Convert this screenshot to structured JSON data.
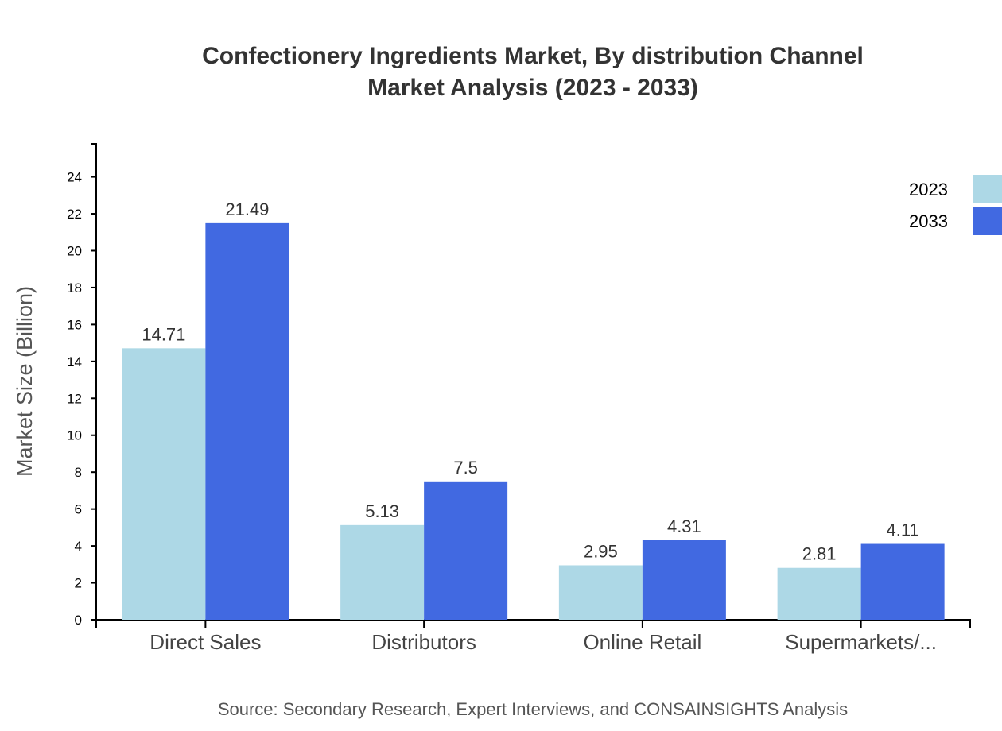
{
  "chart_data": {
    "type": "bar",
    "title": "Confectionery Ingredients Market, By distribution Channel",
    "subtitle": "Market Analysis (2023 - 2033)",
    "xlabel": "",
    "ylabel": "Market Size (Billion)",
    "categories": [
      "Direct Sales",
      "Distributors",
      "Online Retail",
      "Supermarkets/..."
    ],
    "series": [
      {
        "name": "2023",
        "color": "#add8e6",
        "values": [
          14.71,
          5.13,
          2.95,
          2.81
        ]
      },
      {
        "name": "2033",
        "color": "#4169e1",
        "values": [
          21.49,
          7.5,
          4.31,
          4.11
        ]
      }
    ],
    "ylim": [
      0,
      25.79
    ],
    "yticks": [
      0,
      2,
      4,
      6,
      8,
      10,
      12,
      14,
      16,
      18,
      20,
      22,
      24
    ],
    "grid": false,
    "legend": "top-right",
    "source": "Source: Secondary Research, Expert Interviews, and CONSAINSIGHTS Analysis"
  }
}
